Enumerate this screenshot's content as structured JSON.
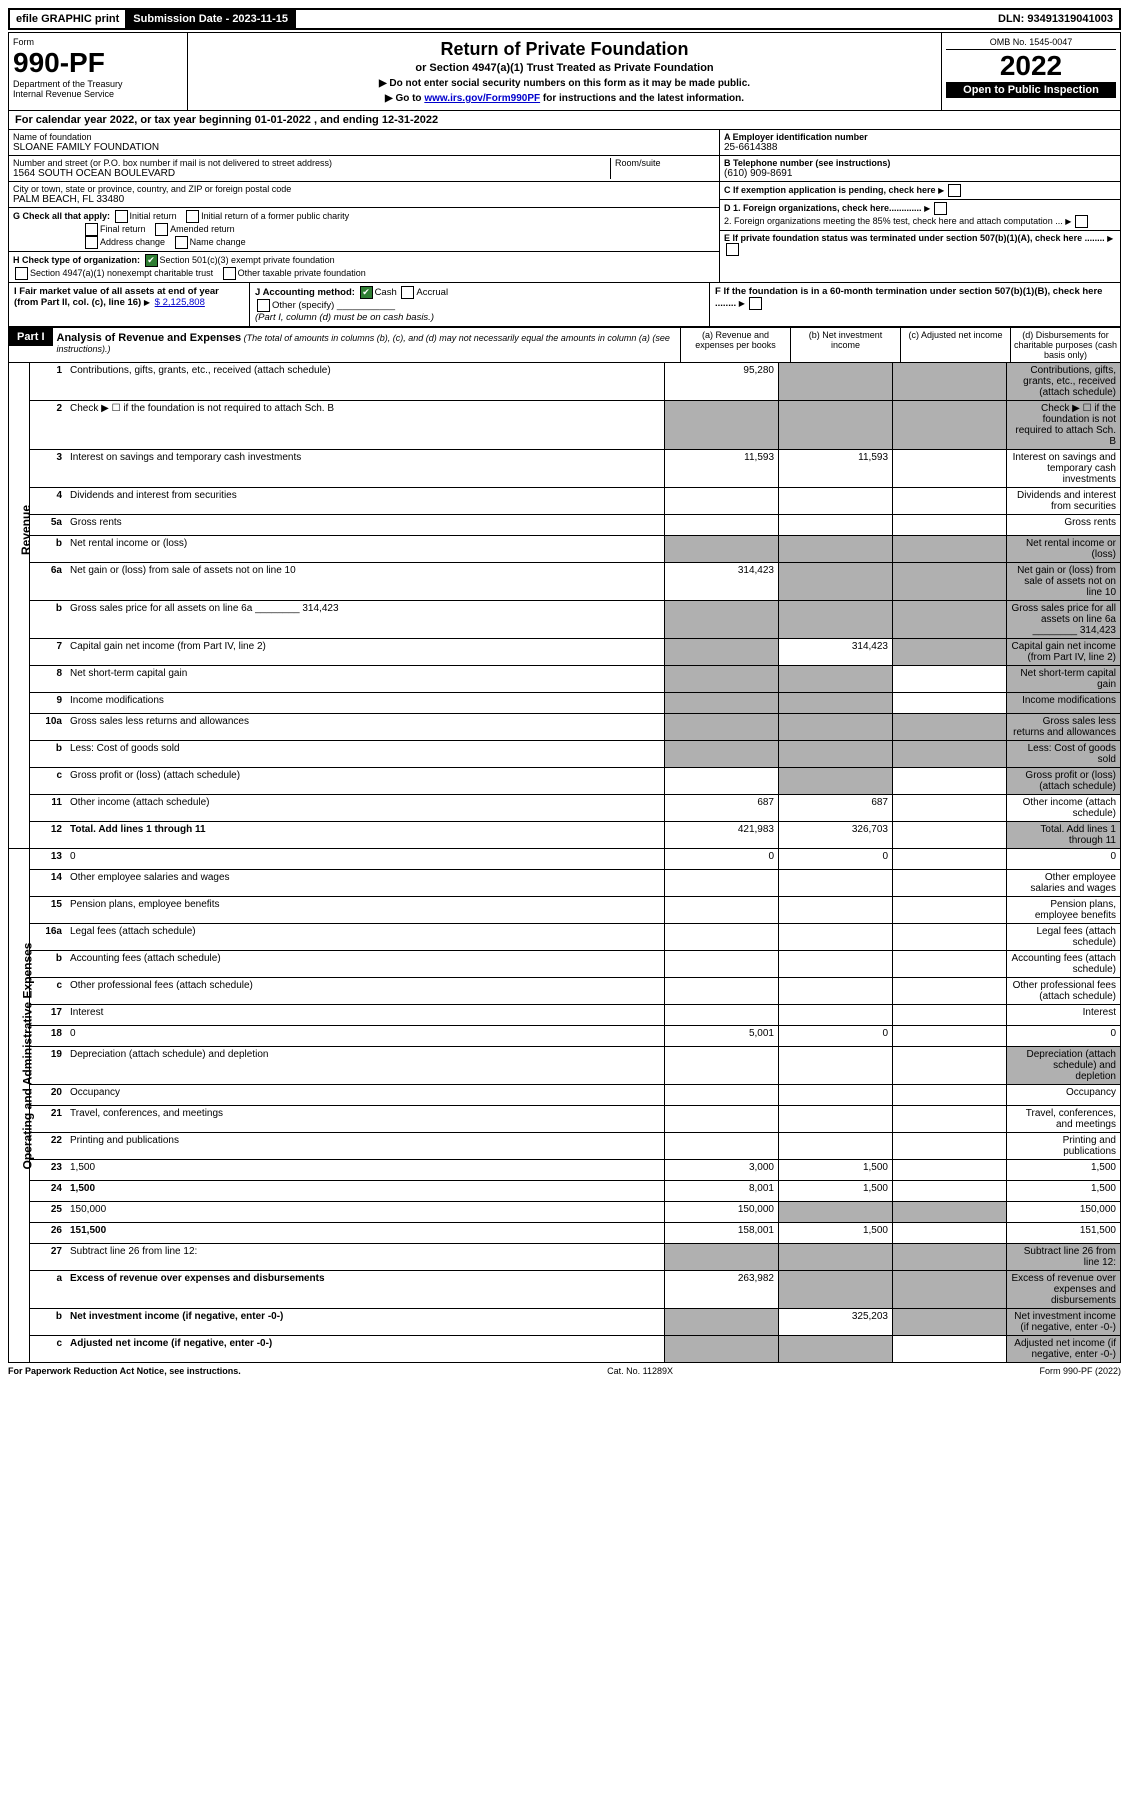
{
  "top": {
    "efile": "efile GRAPHIC print",
    "submissionLabel": "Submission Date - 2023-11-15",
    "dln": "DLN: 93491319041003"
  },
  "header": {
    "formWord": "Form",
    "formNumber": "990-PF",
    "dept": "Department of the Treasury",
    "irs": "Internal Revenue Service",
    "title": "Return of Private Foundation",
    "subtitle": "or Section 4947(a)(1) Trust Treated as Private Foundation",
    "inst1": "▶ Do not enter social security numbers on this form as it may be made public.",
    "inst2": "▶ Go to ",
    "instLink": "www.irs.gov/Form990PF",
    "inst3": " for instructions and the latest information.",
    "omb": "OMB No. 1545-0047",
    "year": "2022",
    "open": "Open to Public Inspection"
  },
  "calYear": {
    "prefix": "For calendar year 2022, or tax year beginning ",
    "begin": "01-01-2022",
    "mid": " , and ending ",
    "end": "12-31-2022"
  },
  "id": {
    "nameLabel": "Name of foundation",
    "name": "SLOANE FAMILY FOUNDATION",
    "streetLabel": "Number and street (or P.O. box number if mail is not delivered to street address)",
    "street": "1564 SOUTH OCEAN BOULEVARD",
    "roomLabel": "Room/suite",
    "cityLabel": "City or town, state or province, country, and ZIP or foreign postal code",
    "city": "PALM BEACH, FL  33480",
    "einLabel": "A Employer identification number",
    "ein": "25-6614388",
    "phoneLabel": "B Telephone number (see instructions)",
    "phone": "(610) 909-8691",
    "cLabel": "C If exemption application is pending, check here",
    "d1": "D 1. Foreign organizations, check here.............",
    "d2": "2. Foreign organizations meeting the 85% test, check here and attach computation ...",
    "eLabel": "E  If private foundation status was terminated under section 507(b)(1)(A), check here ........",
    "fLabel": "F  If the foundation is in a 60-month termination under section 507(b)(1)(B), check here ........"
  },
  "g": {
    "label": "G Check all that apply:",
    "o1": "Initial return",
    "o2": "Final return",
    "o3": "Address change",
    "o4": "Initial return of a former public charity",
    "o5": "Amended return",
    "o6": "Name change"
  },
  "h": {
    "label": "H Check type of organization:",
    "o1": "Section 501(c)(3) exempt private foundation",
    "o2": "Section 4947(a)(1) nonexempt charitable trust",
    "o3": "Other taxable private foundation"
  },
  "i": {
    "label": "I Fair market value of all assets at end of year (from Part II, col. (c), line 16)",
    "val": "$  2,125,808"
  },
  "j": {
    "label": "J Accounting method:",
    "o1": "Cash",
    "o2": "Accrual",
    "o3": "Other (specify)",
    "note": "(Part I, column (d) must be on cash basis.)"
  },
  "part1": {
    "label": "Part I",
    "title": "Analysis of Revenue and Expenses",
    "note": "(The total of amounts in columns (b), (c), and (d) may not necessarily equal the amounts in column (a) (see instructions).)",
    "colA": "(a)  Revenue and expenses per books",
    "colB": "(b)  Net investment income",
    "colC": "(c)  Adjusted net income",
    "colD": "(d)  Disbursements for charitable purposes (cash basis only)"
  },
  "sides": {
    "revenue": "Revenue",
    "expenses": "Operating and Administrative Expenses"
  },
  "rows": [
    {
      "n": "1",
      "d": "Contributions, gifts, grants, etc., received (attach schedule)",
      "a": "95,280",
      "bGrey": true,
      "cGrey": true,
      "dGrey": true
    },
    {
      "n": "2",
      "d": "Check ▶ ☐ if the foundation is not required to attach Sch. B",
      "aGrey": true,
      "bGrey": true,
      "cGrey": true,
      "dGrey": true
    },
    {
      "n": "3",
      "d": "Interest on savings and temporary cash investments",
      "a": "11,593",
      "b": "11,593"
    },
    {
      "n": "4",
      "d": "Dividends and interest from securities"
    },
    {
      "n": "5a",
      "d": "Gross rents"
    },
    {
      "n": "b",
      "d": "Net rental income or (loss)",
      "aGrey": true,
      "bGrey": true,
      "cGrey": true,
      "dGrey": true
    },
    {
      "n": "6a",
      "d": "Net gain or (loss) from sale of assets not on line 10",
      "a": "314,423",
      "bGrey": true,
      "cGrey": true,
      "dGrey": true
    },
    {
      "n": "b",
      "d": "Gross sales price for all assets on line 6a ________ 314,423",
      "aGrey": true,
      "bGrey": true,
      "cGrey": true,
      "dGrey": true
    },
    {
      "n": "7",
      "d": "Capital gain net income (from Part IV, line 2)",
      "aGrey": true,
      "b": "314,423",
      "cGrey": true,
      "dGrey": true
    },
    {
      "n": "8",
      "d": "Net short-term capital gain",
      "aGrey": true,
      "bGrey": true,
      "dGrey": true
    },
    {
      "n": "9",
      "d": "Income modifications",
      "aGrey": true,
      "bGrey": true,
      "dGrey": true
    },
    {
      "n": "10a",
      "d": "Gross sales less returns and allowances",
      "aGrey": true,
      "bGrey": true,
      "cGrey": true,
      "dGrey": true
    },
    {
      "n": "b",
      "d": "Less: Cost of goods sold",
      "aGrey": true,
      "bGrey": true,
      "cGrey": true,
      "dGrey": true
    },
    {
      "n": "c",
      "d": "Gross profit or (loss) (attach schedule)",
      "bGrey": true,
      "dGrey": true
    },
    {
      "n": "11",
      "d": "Other income (attach schedule)",
      "a": "687",
      "b": "687"
    },
    {
      "n": "12",
      "d": "Total. Add lines 1 through 11",
      "bold": true,
      "a": "421,983",
      "b": "326,703",
      "dGrey": true
    },
    {
      "n": "13",
      "d": "0",
      "a": "0",
      "b": "0"
    },
    {
      "n": "14",
      "d": "Other employee salaries and wages"
    },
    {
      "n": "15",
      "d": "Pension plans, employee benefits"
    },
    {
      "n": "16a",
      "d": "Legal fees (attach schedule)"
    },
    {
      "n": "b",
      "d": "Accounting fees (attach schedule)"
    },
    {
      "n": "c",
      "d": "Other professional fees (attach schedule)"
    },
    {
      "n": "17",
      "d": "Interest"
    },
    {
      "n": "18",
      "d": "0",
      "a": "5,001",
      "b": "0"
    },
    {
      "n": "19",
      "d": "Depreciation (attach schedule) and depletion",
      "dGrey": true
    },
    {
      "n": "20",
      "d": "Occupancy"
    },
    {
      "n": "21",
      "d": "Travel, conferences, and meetings"
    },
    {
      "n": "22",
      "d": "Printing and publications"
    },
    {
      "n": "23",
      "d": "1,500",
      "a": "3,000",
      "b": "1,500"
    },
    {
      "n": "24",
      "d": "1,500",
      "bold": true,
      "a": "8,001",
      "b": "1,500"
    },
    {
      "n": "25",
      "d": "150,000",
      "a": "150,000",
      "bGrey": true,
      "cGrey": true
    },
    {
      "n": "26",
      "d": "151,500",
      "bold": true,
      "a": "158,001",
      "b": "1,500"
    },
    {
      "n": "27",
      "d": "Subtract line 26 from line 12:",
      "aGrey": true,
      "bGrey": true,
      "cGrey": true,
      "dGrey": true
    },
    {
      "n": "a",
      "d": "Excess of revenue over expenses and disbursements",
      "bold": true,
      "a": "263,982",
      "bGrey": true,
      "cGrey": true,
      "dGrey": true
    },
    {
      "n": "b",
      "d": "Net investment income (if negative, enter -0-)",
      "bold": true,
      "aGrey": true,
      "b": "325,203",
      "cGrey": true,
      "dGrey": true
    },
    {
      "n": "c",
      "d": "Adjusted net income (if negative, enter -0-)",
      "bold": true,
      "aGrey": true,
      "bGrey": true,
      "dGrey": true
    }
  ],
  "footer": {
    "left": "For Paperwork Reduction Act Notice, see instructions.",
    "mid": "Cat. No. 11289X",
    "right": "Form 990-PF (2022)"
  }
}
